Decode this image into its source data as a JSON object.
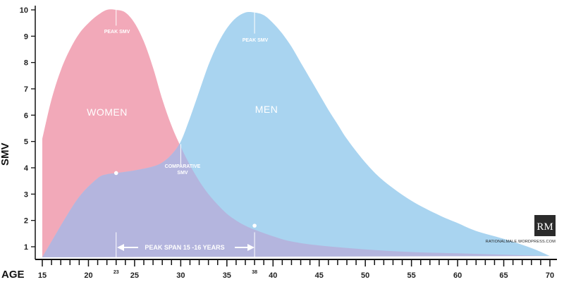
{
  "chart_data": {
    "type": "area",
    "xlabel": "AGE",
    "ylabel": "SMV",
    "xlim": [
      15,
      70
    ],
    "ylim": [
      0.5,
      10
    ],
    "x_ticks": [
      "15",
      "20",
      "25",
      "30",
      "35",
      "40",
      "45",
      "50",
      "55",
      "60",
      "65",
      "70"
    ],
    "x_ticks_small": [
      "23",
      "38"
    ],
    "y_ticks": [
      "1",
      "2",
      "3",
      "4",
      "5",
      "6",
      "7",
      "8",
      "9",
      "10"
    ],
    "series": [
      {
        "name": "WOMEN",
        "color": "#f2a9b9",
        "points": [
          [
            15,
            0.6
          ],
          [
            15,
            5.1
          ],
          [
            16,
            6.6
          ],
          [
            17,
            7.7
          ],
          [
            18,
            8.5
          ],
          [
            19,
            9.1
          ],
          [
            20,
            9.5
          ],
          [
            21,
            9.8
          ],
          [
            22,
            10.0
          ],
          [
            23,
            10.0
          ],
          [
            24,
            9.9
          ],
          [
            25,
            9.5
          ],
          [
            26,
            8.8
          ],
          [
            27,
            7.8
          ],
          [
            28,
            6.6
          ],
          [
            29,
            5.6
          ],
          [
            30,
            4.8
          ],
          [
            31,
            4.1
          ],
          [
            32,
            3.5
          ],
          [
            33,
            3.0
          ],
          [
            34,
            2.6
          ],
          [
            35,
            2.25
          ],
          [
            36,
            2.0
          ],
          [
            37,
            1.8
          ],
          [
            38,
            1.65
          ],
          [
            40,
            1.4
          ],
          [
            42,
            1.2
          ],
          [
            45,
            1.05
          ],
          [
            50,
            0.9
          ],
          [
            55,
            0.8
          ],
          [
            60,
            0.75
          ],
          [
            65,
            0.7
          ],
          [
            70,
            0.65
          ]
        ]
      },
      {
        "name": "MEN",
        "color": "#a9d4f0",
        "points": [
          [
            15,
            0.6
          ],
          [
            17,
            1.8
          ],
          [
            19,
            2.9
          ],
          [
            21,
            3.6
          ],
          [
            22,
            3.75
          ],
          [
            23,
            3.8
          ],
          [
            25,
            3.9
          ],
          [
            27,
            4.05
          ],
          [
            28,
            4.2
          ],
          [
            29,
            4.5
          ],
          [
            30,
            5.0
          ],
          [
            31,
            5.9
          ],
          [
            32,
            6.9
          ],
          [
            33,
            7.9
          ],
          [
            34,
            8.7
          ],
          [
            35,
            9.3
          ],
          [
            36,
            9.7
          ],
          [
            37,
            9.9
          ],
          [
            38,
            9.9
          ],
          [
            39,
            9.8
          ],
          [
            40,
            9.5
          ],
          [
            41,
            9.1
          ],
          [
            42,
            8.6
          ],
          [
            43,
            8.0
          ],
          [
            44,
            7.4
          ],
          [
            45,
            6.8
          ],
          [
            46,
            6.2
          ],
          [
            47,
            5.65
          ],
          [
            48,
            5.1
          ],
          [
            50,
            4.2
          ],
          [
            52,
            3.5
          ],
          [
            55,
            2.75
          ],
          [
            58,
            2.2
          ],
          [
            60,
            1.9
          ],
          [
            62,
            1.6
          ],
          [
            65,
            1.3
          ],
          [
            68,
            0.95
          ],
          [
            70,
            0.65
          ]
        ]
      }
    ],
    "markers": [
      [
        23,
        3.8
      ],
      [
        38,
        1.8
      ]
    ],
    "annotations": {
      "women_label": "WOMEN",
      "men_label": "MEN",
      "peak_women": "PEAK SMV",
      "peak_men": "PEAK SMV",
      "comparative_line1": "COMPARATIVE",
      "comparative_line2": "SMV",
      "peak_span": "PEAK SPAN 15 -16 YEARS",
      "credit": "RATIONALMALE.WORDPRESS.COM",
      "logo": "RM"
    },
    "grid": false
  },
  "colors": {
    "women": "#f2a9b9",
    "men": "#a9d4f0",
    "overlap": "#b4b5de",
    "axis": "#111111",
    "logo_bg": "#2b2b2b"
  }
}
